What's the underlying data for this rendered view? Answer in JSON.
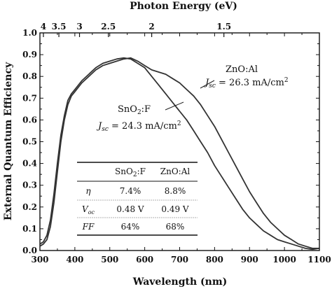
{
  "chart_data": {
    "type": "line",
    "xlabel": "Wavelength (nm)",
    "ylabel": "External Quantum Efficiency",
    "top_axis_label": "Photon Energy (eV)",
    "xlim": [
      300,
      1100
    ],
    "ylim": [
      0.0,
      1.0
    ],
    "x_ticks": [
      "300",
      "400",
      "500",
      "600",
      "700",
      "800",
      "900",
      "1000",
      "1100"
    ],
    "y_ticks": [
      "0.0",
      "0.1",
      "0.2",
      "0.3",
      "0.4",
      "0.5",
      "0.6",
      "0.7",
      "0.8",
      "0.9",
      "1.0"
    ],
    "top_ticks": [
      "4",
      "3.5",
      "3",
      "2.5",
      "2",
      "1.5"
    ],
    "top_tick_values_ev": [
      4,
      3.5,
      3,
      2.5,
      2,
      1.5
    ],
    "grid": false,
    "annotations": {
      "zno": {
        "name": "ZnO:Al",
        "jsc_symbol": "J",
        "jsc_sub": "sc",
        "jsc_value": " = 26.3 mA/cm",
        "jsc_sup": "2"
      },
      "sno": {
        "name": "SnO",
        "name_sub": "2",
        "name_rest": ":F",
        "jsc_symbol": "J",
        "jsc_sub": "sc",
        "jsc_value": " = 24.3 mA/cm",
        "jsc_sup": "2"
      }
    },
    "table": {
      "headers": [
        "",
        "SnO2:F",
        "ZnO:Al"
      ],
      "rows": [
        {
          "label": "η",
          "values": [
            "7.4%",
            "8.8%"
          ]
        },
        {
          "label": "V",
          "label_sub": "oc",
          "values": [
            "0.48 V",
            "0.49 V"
          ]
        },
        {
          "label": "FF",
          "values": [
            "64%",
            "68%"
          ]
        }
      ]
    },
    "series": [
      {
        "label": "SnO2:F",
        "x": [
          300,
          310,
          320,
          330,
          340,
          350,
          360,
          370,
          380,
          390,
          400,
          420,
          440,
          460,
          480,
          500,
          520,
          540,
          560,
          580,
          600,
          620,
          640,
          660,
          680,
          700,
          720,
          740,
          760,
          780,
          800,
          820,
          840,
          860,
          880,
          900,
          920,
          940,
          960,
          980,
          1000,
          1020,
          1040,
          1060,
          1080,
          1100
        ],
        "y": [
          0.03,
          0.04,
          0.07,
          0.14,
          0.26,
          0.4,
          0.53,
          0.62,
          0.69,
          0.72,
          0.74,
          0.78,
          0.81,
          0.84,
          0.86,
          0.87,
          0.88,
          0.885,
          0.88,
          0.86,
          0.84,
          0.8,
          0.76,
          0.72,
          0.68,
          0.64,
          0.6,
          0.55,
          0.5,
          0.45,
          0.39,
          0.34,
          0.29,
          0.24,
          0.19,
          0.15,
          0.12,
          0.09,
          0.07,
          0.05,
          0.04,
          0.03,
          0.02,
          0.01,
          0.005,
          0.01
        ]
      },
      {
        "label": "ZnO:Al",
        "x": [
          300,
          310,
          320,
          330,
          340,
          350,
          360,
          370,
          380,
          390,
          400,
          420,
          440,
          460,
          480,
          500,
          520,
          540,
          560,
          580,
          600,
          620,
          640,
          660,
          680,
          700,
          720,
          740,
          760,
          780,
          800,
          820,
          840,
          860,
          880,
          900,
          920,
          940,
          960,
          980,
          1000,
          1020,
          1040,
          1060,
          1080,
          1100
        ],
        "y": [
          0.02,
          0.03,
          0.05,
          0.11,
          0.22,
          0.36,
          0.5,
          0.6,
          0.67,
          0.71,
          0.73,
          0.77,
          0.8,
          0.83,
          0.85,
          0.86,
          0.87,
          0.88,
          0.885,
          0.87,
          0.85,
          0.83,
          0.82,
          0.81,
          0.79,
          0.77,
          0.74,
          0.71,
          0.67,
          0.62,
          0.57,
          0.51,
          0.45,
          0.39,
          0.33,
          0.27,
          0.22,
          0.17,
          0.13,
          0.1,
          0.07,
          0.05,
          0.03,
          0.02,
          0.01,
          0.01
        ]
      }
    ]
  }
}
